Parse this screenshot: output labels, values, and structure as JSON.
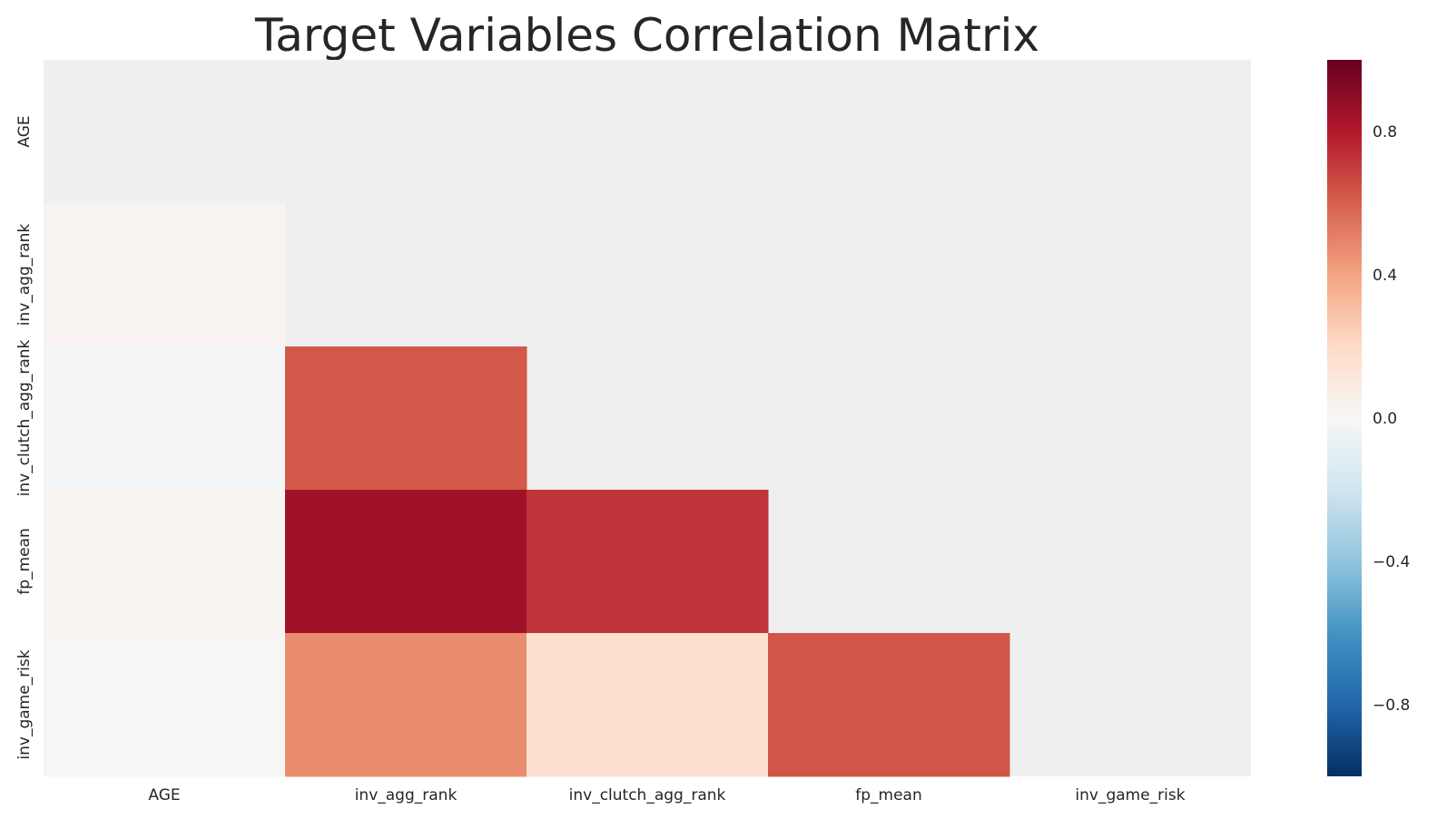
{
  "chart_data": {
    "type": "heatmap",
    "title": "Target Variables Correlation Matrix",
    "xlabel": "",
    "ylabel": "",
    "x_categories": [
      "AGE",
      "inv_agg_rank",
      "inv_clutch_agg_rank",
      "fp_mean",
      "inv_game_risk"
    ],
    "y_categories": [
      "AGE",
      "inv_agg_rank",
      "inv_clutch_agg_rank",
      "fp_mean",
      "inv_game_risk"
    ],
    "mask": "upper_triangle_including_diagonal",
    "matrix": [
      [
        null,
        null,
        null,
        null,
        null
      ],
      [
        0.03,
        null,
        null,
        null,
        null
      ],
      [
        -0.02,
        0.62,
        null,
        null,
        null
      ],
      [
        0.02,
        0.85,
        0.72,
        null,
        null
      ],
      [
        0.01,
        0.47,
        0.17,
        0.63,
        null
      ]
    ],
    "masked_color": "#efefef",
    "colormap": "RdBu_r",
    "colorbar": {
      "vmin": -1.0,
      "vmax": 1.0,
      "ticks": [
        0.8,
        0.4,
        0.0,
        -0.4,
        -0.8
      ],
      "tick_labels": [
        "0.8",
        "0.4",
        "0.0",
        "−0.4",
        "−0.8"
      ],
      "placement": "right"
    },
    "grid": false
  }
}
